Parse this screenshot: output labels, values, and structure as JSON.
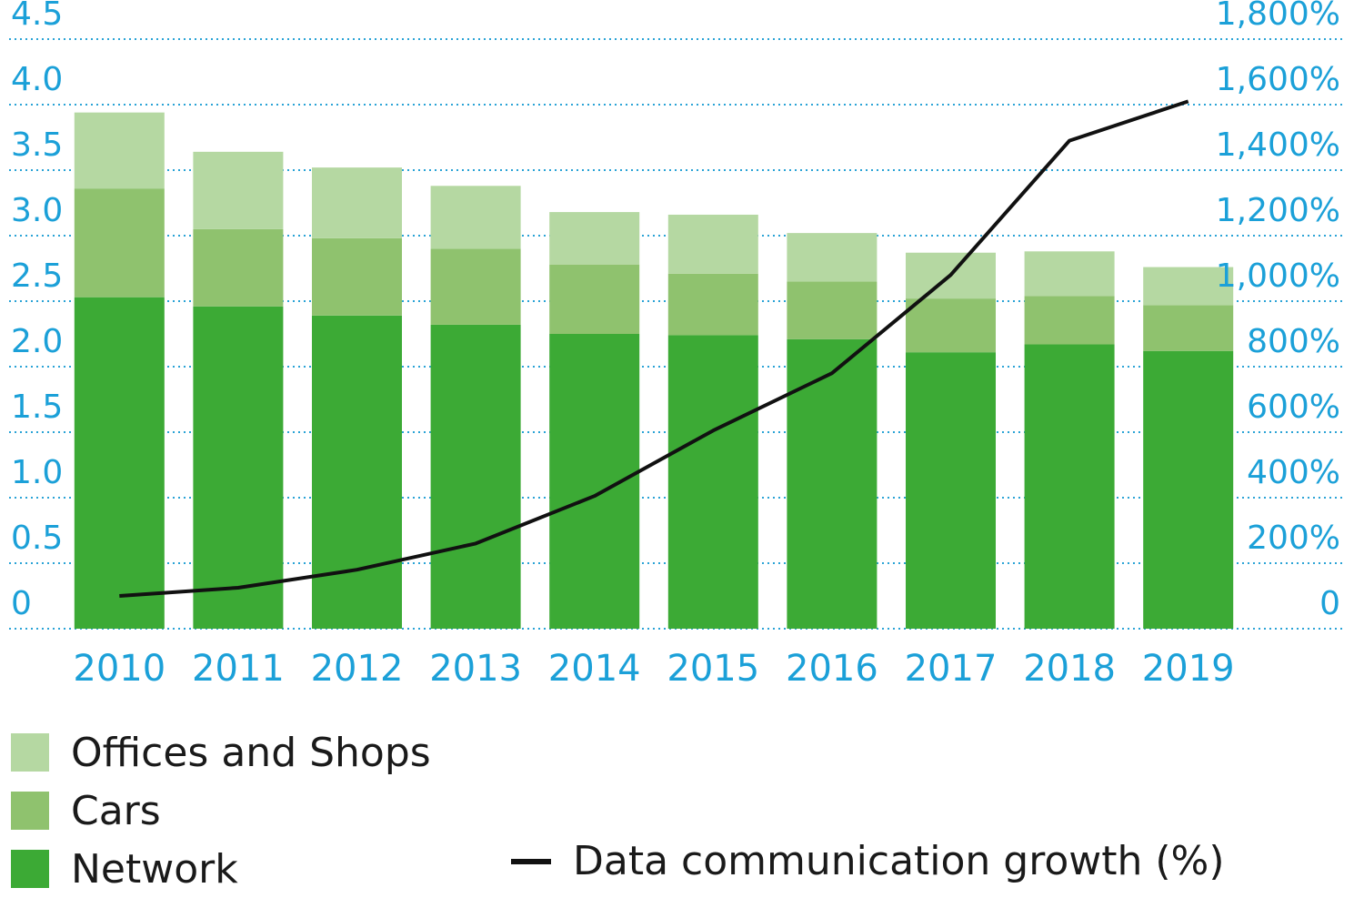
{
  "chart_data": {
    "type": "bar",
    "stacked": true,
    "categories": [
      "2010",
      "2011",
      "2012",
      "2013",
      "2014",
      "2015",
      "2016",
      "2017",
      "2018",
      "2019"
    ],
    "series": [
      {
        "name": "Network",
        "color": "#3caa35",
        "values": [
          2.53,
          2.46,
          2.39,
          2.32,
          2.25,
          2.24,
          2.21,
          2.11,
          2.17,
          2.12
        ]
      },
      {
        "name": "Cars",
        "color": "#8fc26e",
        "values": [
          0.83,
          0.59,
          0.59,
          0.58,
          0.53,
          0.47,
          0.44,
          0.41,
          0.37,
          0.35
        ]
      },
      {
        "name": "Offices and Shops",
        "color": "#b5d8a2",
        "values": [
          0.58,
          0.59,
          0.54,
          0.48,
          0.4,
          0.45,
          0.37,
          0.35,
          0.34,
          0.29
        ]
      }
    ],
    "line_series": {
      "name": "Data communication growth (%)",
      "color": "#111111",
      "axis": "right",
      "values": [
        100,
        125,
        180,
        260,
        405,
        605,
        780,
        1080,
        1490,
        1610
      ]
    },
    "y_left": {
      "ticks": [
        "0",
        "0.5",
        "1.0",
        "1.5",
        "2.0",
        "2.5",
        "3.0",
        "3.5",
        "4.0",
        "4.5"
      ],
      "ylim": [
        0,
        4.5
      ]
    },
    "y_right": {
      "ticks": [
        "0",
        "200%",
        "400%",
        "600%",
        "800%",
        "1,000%",
        "1,200%",
        "1,400%",
        "1,600%",
        "1,800%"
      ],
      "ylim": [
        0,
        1800
      ]
    },
    "grid": true,
    "legend_position": "bottom",
    "colors": {
      "axis_text": "#1ba0d8",
      "grid": "#2aa3d6"
    }
  }
}
